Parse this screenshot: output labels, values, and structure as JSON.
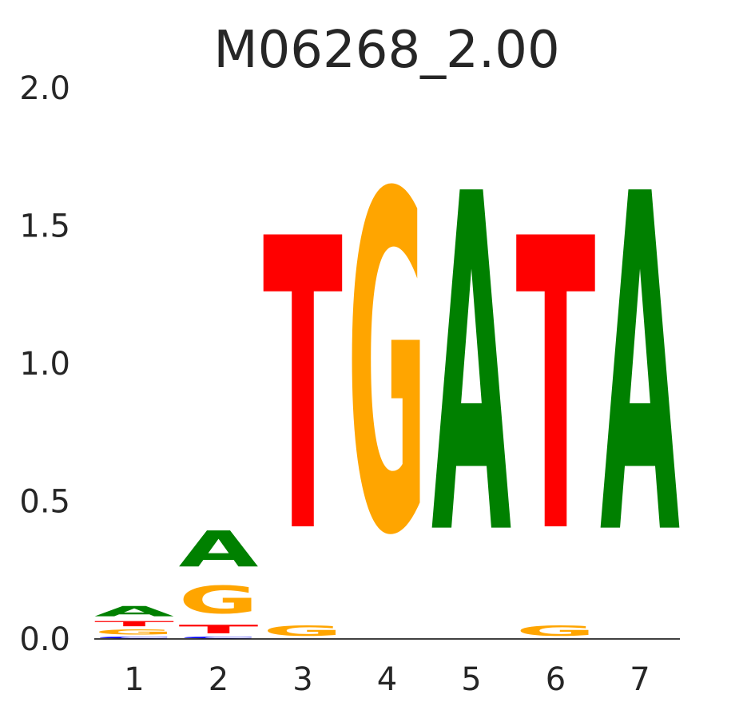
{
  "chart_data": {
    "type": "sequence-logo",
    "title": "M06268_2.00",
    "xlabel": "",
    "ylabel": "",
    "ylim": [
      0,
      2.0
    ],
    "yticks": [
      "0.0",
      "0.5",
      "1.0",
      "1.5",
      "2.0"
    ],
    "categories": [
      "1",
      "2",
      "3",
      "4",
      "5",
      "6",
      "7"
    ],
    "colors": {
      "A": "#008000",
      "C": "#0000ff",
      "G": "#ffa500",
      "T": "#ff0000"
    },
    "positions": [
      [
        {
          "letter": "C",
          "value": 0.01
        },
        {
          "letter": "G",
          "value": 0.03
        },
        {
          "letter": "T",
          "value": 0.03
        },
        {
          "letter": "A",
          "value": 0.06
        }
      ],
      [
        {
          "letter": "C",
          "value": 0.01
        },
        {
          "letter": "T",
          "value": 0.05
        },
        {
          "letter": "G",
          "value": 0.16
        },
        {
          "letter": "A",
          "value": 0.21
        }
      ],
      [
        {
          "letter": "G",
          "value": 0.06
        },
        {
          "letter": "T",
          "value": 1.7
        }
      ],
      [
        {
          "letter": "G",
          "value": 1.97
        }
      ],
      [
        {
          "letter": "A",
          "value": 1.97
        }
      ],
      [
        {
          "letter": "G",
          "value": 0.06
        },
        {
          "letter": "T",
          "value": 1.7
        }
      ],
      [
        {
          "letter": "A",
          "value": 1.97
        }
      ]
    ],
    "grid": false,
    "legend": "none"
  }
}
